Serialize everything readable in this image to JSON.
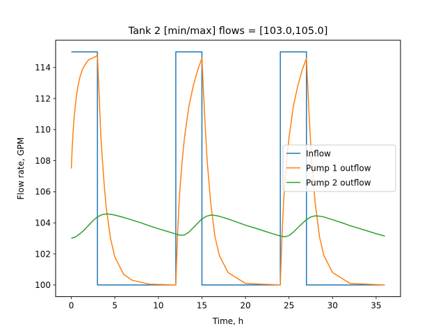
{
  "chart_data": {
    "type": "line",
    "title": "Tank 2 [min/max] flows = [103.0,105.0]",
    "xlabel": "Time, h",
    "ylabel": "Flow rate, GPM",
    "xlim": [
      -1.8,
      37.8
    ],
    "ylim": [
      99.25,
      115.75
    ],
    "xticks": [
      0,
      5,
      10,
      15,
      20,
      25,
      30,
      35
    ],
    "yticks": [
      100,
      102,
      104,
      106,
      108,
      110,
      112,
      114
    ],
    "legend_position": "center-right",
    "series": [
      {
        "name": "Inflow",
        "color": "#1f77b4",
        "style": "step",
        "x": [
          0,
          3,
          3,
          12,
          12,
          15,
          15,
          24,
          24,
          27,
          27,
          36
        ],
        "y": [
          115,
          115,
          100,
          100,
          115,
          115,
          100,
          100,
          115,
          115,
          100,
          100
        ]
      },
      {
        "name": "Pump 1 outflow",
        "color": "#ff7f0e",
        "x": [
          0,
          0.1,
          0.2,
          0.3,
          0.45,
          0.6,
          0.8,
          1.0,
          1.3,
          1.6,
          2.0,
          2.4,
          2.8,
          3.0,
          3.2,
          3.4,
          3.7,
          4.0,
          4.5,
          5.0,
          6.0,
          7.0,
          9.0,
          12.0,
          12.1,
          12.2,
          12.4,
          12.7,
          13.0,
          13.5,
          14.0,
          14.5,
          15.0,
          15.3,
          15.6,
          16.0,
          16.5,
          17.0,
          18.0,
          20.0,
          24.0,
          24.1,
          24.2,
          24.4,
          24.7,
          25.0,
          25.5,
          26.0,
          26.5,
          27.0,
          27.3,
          27.6,
          28.0,
          28.5,
          29.0,
          30.0,
          32.0,
          36.0
        ],
        "y": [
          107.5,
          108.8,
          109.8,
          110.6,
          111.5,
          112.2,
          112.9,
          113.4,
          113.9,
          114.2,
          114.5,
          114.6,
          114.7,
          114.8,
          112.2,
          109.5,
          107.0,
          105.0,
          103.0,
          101.8,
          100.7,
          100.3,
          100.05,
          100.0,
          101.7,
          103.2,
          105.6,
          107.8,
          109.5,
          111.5,
          112.8,
          113.8,
          114.6,
          111.0,
          108.0,
          105.3,
          103.1,
          101.9,
          100.8,
          100.1,
          100.0,
          101.7,
          103.2,
          105.6,
          107.8,
          109.5,
          111.5,
          112.8,
          113.8,
          114.6,
          111.0,
          108.0,
          105.3,
          103.1,
          101.9,
          100.8,
          100.1,
          100.0
        ]
      },
      {
        "name": "Pump 2 outflow",
        "color": "#2ca02c",
        "x": [
          0,
          0.5,
          1.0,
          1.5,
          2.0,
          2.5,
          3.0,
          3.5,
          4.0,
          4.5,
          5.0,
          6.0,
          7.0,
          8.0,
          9.0,
          10.0,
          11.0,
          12.0,
          12.5,
          13.0,
          13.5,
          14.0,
          14.5,
          15.0,
          15.5,
          16.0,
          16.5,
          17.0,
          18.0,
          19.0,
          20.0,
          21.0,
          22.0,
          23.0,
          24.0,
          24.5,
          25.0,
          25.5,
          26.0,
          26.5,
          27.0,
          27.5,
          28.0,
          28.5,
          29.0,
          30.0,
          31.0,
          32.0,
          33.0,
          34.0,
          35.0,
          36.0
        ],
        "y": [
          103.0,
          103.1,
          103.3,
          103.55,
          103.85,
          104.15,
          104.38,
          104.52,
          104.57,
          104.55,
          104.5,
          104.35,
          104.18,
          104.0,
          103.8,
          103.62,
          103.45,
          103.28,
          103.2,
          103.22,
          103.4,
          103.68,
          103.98,
          104.25,
          104.42,
          104.5,
          104.48,
          104.42,
          104.25,
          104.05,
          103.85,
          103.68,
          103.5,
          103.32,
          103.15,
          103.1,
          103.18,
          103.4,
          103.68,
          103.95,
          104.2,
          104.38,
          104.45,
          104.43,
          104.38,
          104.2,
          104.02,
          103.82,
          103.65,
          103.48,
          103.3,
          103.15
        ]
      }
    ]
  }
}
